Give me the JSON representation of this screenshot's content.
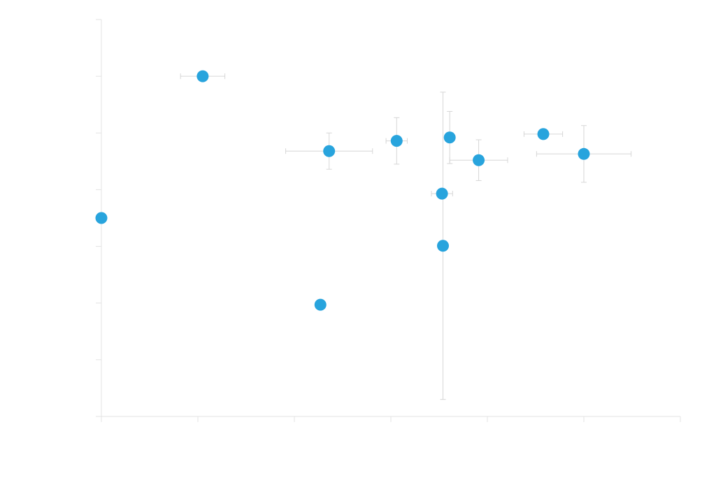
{
  "chart_data": {
    "type": "scatter",
    "title": "",
    "xlabel": "",
    "ylabel": "",
    "xlim": [
      0,
      6
    ],
    "ylim": [
      0,
      7
    ],
    "x_ticks": [
      0,
      1,
      2,
      3,
      4,
      5,
      6
    ],
    "y_ticks": [
      0,
      1,
      2,
      3,
      4,
      5,
      6,
      7
    ],
    "show_tick_labels": false,
    "grid": false,
    "legend": "none",
    "colors": {
      "point": "#28a4dd",
      "error_bar": "#d6d6d6",
      "axis": "#e3e3e3"
    },
    "series": [
      {
        "points": [
          {
            "x": 0.0,
            "y": 3.5
          },
          {
            "x": 1.05,
            "y": 6.0,
            "xerr": 0.23
          },
          {
            "x": 2.36,
            "y": 4.68,
            "xerr": 0.45,
            "yerr": 0.32
          },
          {
            "x": 2.27,
            "y": 1.97
          },
          {
            "x": 3.06,
            "y": 4.86,
            "xerr": 0.11,
            "yerr": 0.41
          },
          {
            "x": 3.61,
            "y": 4.92,
            "yerr": 0.46
          },
          {
            "x": 3.53,
            "y": 3.93,
            "xerr": 0.11
          },
          {
            "x": 3.54,
            "y": 3.01,
            "yerr": 2.71
          },
          {
            "x": 3.91,
            "y": 4.52,
            "xerr": 0.3,
            "yerr": 0.36
          },
          {
            "x": 4.58,
            "y": 4.98,
            "xerr": 0.2
          },
          {
            "x": 5.0,
            "y": 4.63,
            "xerr": 0.49,
            "yerr": 0.5
          }
        ]
      }
    ]
  }
}
